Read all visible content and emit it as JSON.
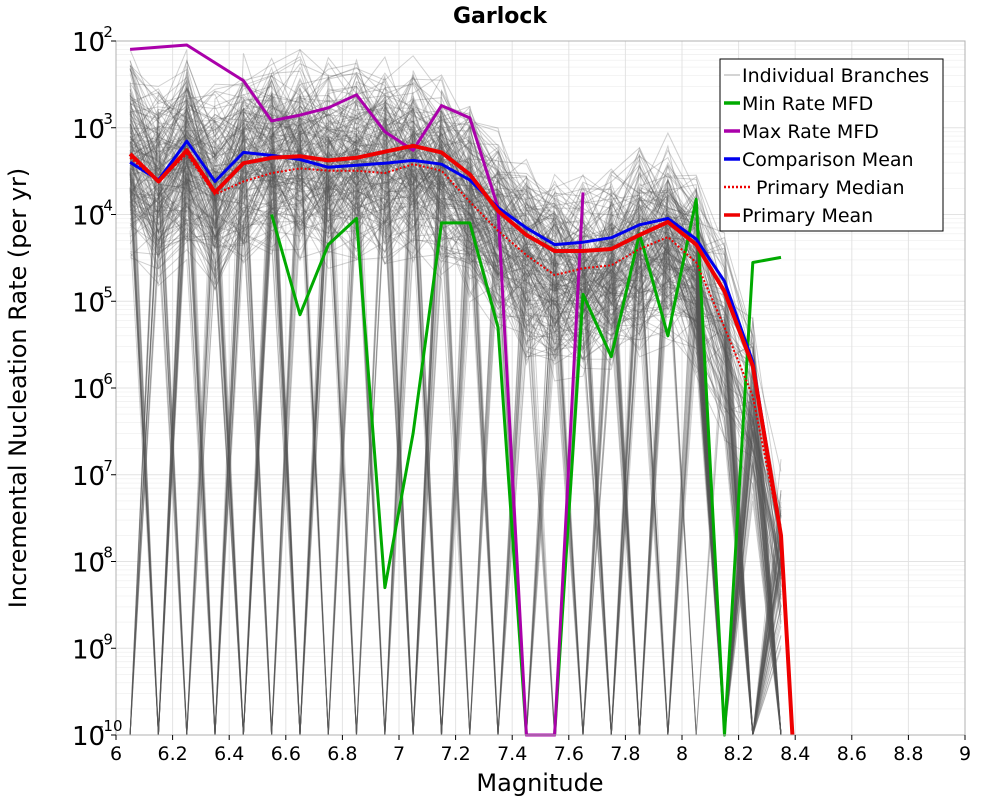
{
  "chart_data": {
    "type": "line",
    "title": "Garlock",
    "xlabel": "Magnitude",
    "ylabel": "Incremental Nucleation Rate (per yr)",
    "xlim": [
      6,
      9
    ],
    "ylim": [
      1e-10,
      0.01
    ],
    "yscale": "log",
    "grid": true,
    "legend_position": "top-right",
    "x_ticks": [
      "6",
      "6.2",
      "6.4",
      "6.6",
      "6.8",
      "7",
      "7.2",
      "7.4",
      "7.6",
      "7.8",
      "8",
      "8.2",
      "8.4",
      "8.6",
      "8.8",
      "9"
    ],
    "y_tick_mantissa": "10",
    "y_tick_exponents": [
      "-10",
      "-9",
      "-8",
      "-7",
      "-6",
      "-5",
      "-4",
      "-3",
      "-2"
    ],
    "series": [
      {
        "name": "Individual Branches",
        "color": "#555555",
        "style": "thin",
        "note_values": "ensemble of many branch MFDs spanning 1e-10 to 1e-2"
      },
      {
        "name": "Min Rate MFD",
        "color": "#00aa00",
        "x": [
          6.55,
          6.65,
          6.75,
          6.85,
          6.95,
          7.05,
          7.15,
          7.25,
          7.35,
          7.45,
          7.55,
          7.65,
          7.75,
          7.85,
          7.95,
          8.05,
          8.15,
          8.25,
          8.35
        ],
        "values": [
          0.0001,
          7e-06,
          4.5e-05,
          9e-05,
          5e-09,
          3e-07,
          8e-05,
          8e-05,
          5e-06,
          1e-10,
          1e-10,
          1.2e-05,
          2.3e-06,
          6e-05,
          4e-06,
          0.00015,
          1e-10,
          2.8e-05,
          3.2e-05
        ]
      },
      {
        "name": "Max Rate MFD",
        "color": "#aa00aa",
        "x": [
          6.05,
          6.25,
          6.45,
          6.55,
          6.65,
          6.75,
          6.85,
          6.95,
          7.05,
          7.15,
          7.25,
          7.35,
          7.45,
          7.55,
          7.65
        ],
        "values": [
          0.008,
          0.009,
          0.0035,
          0.0012,
          0.0014,
          0.0017,
          0.0024,
          0.0009,
          0.00055,
          0.0018,
          0.0013,
          0.00012,
          1e-10,
          1e-10,
          0.00018
        ]
      },
      {
        "name": "Comparison Mean",
        "color": "#0000ee",
        "x": [
          6.05,
          6.15,
          6.25,
          6.35,
          6.45,
          6.55,
          6.65,
          6.75,
          6.85,
          6.95,
          7.05,
          7.15,
          7.25,
          7.35,
          7.45,
          7.55,
          7.65,
          7.75,
          7.85,
          7.95,
          8.05,
          8.15,
          8.25,
          8.35
        ],
        "values": [
          0.0004,
          0.00025,
          0.0007,
          0.00024,
          0.00052,
          0.00048,
          0.00043,
          0.00035,
          0.00037,
          0.00039,
          0.00042,
          0.00038,
          0.00025,
          0.00012,
          7e-05,
          4.5e-05,
          4.8e-05,
          5.4e-05,
          7.6e-05,
          9e-05,
          5.2e-05,
          1.7e-05,
          2e-06,
          2e-08
        ]
      },
      {
        "name": "Primary Median",
        "color": "#ee0000",
        "style": "dotted",
        "x": [
          6.05,
          6.15,
          6.25,
          6.35,
          6.45,
          6.55,
          6.65,
          6.75,
          6.85,
          6.95,
          7.05,
          7.15,
          7.25,
          7.35,
          7.45,
          7.55,
          7.65,
          7.75,
          7.85,
          7.95,
          8.05,
          8.15,
          8.25,
          8.35
        ],
        "values": [
          0.00045,
          0.00024,
          0.0005,
          0.00017,
          0.00024,
          0.0003,
          0.00034,
          0.00032,
          0.00032,
          0.0003,
          0.00038,
          0.00032,
          0.00014,
          6.5e-05,
          3.4e-05,
          2e-05,
          2.4e-05,
          2.6e-05,
          4e-05,
          5.5e-05,
          2.8e-05,
          5e-06,
          8e-07,
          2e-08
        ]
      },
      {
        "name": "Primary Mean",
        "color": "#ee0000",
        "x": [
          6.05,
          6.15,
          6.25,
          6.35,
          6.45,
          6.55,
          6.65,
          6.75,
          6.85,
          6.95,
          7.05,
          7.15,
          7.25,
          7.35,
          7.45,
          7.55,
          7.65,
          7.75,
          7.85,
          7.95,
          8.05,
          8.15,
          8.25,
          8.35,
          8.39
        ],
        "values": [
          0.0005,
          0.00024,
          0.00055,
          0.00018,
          0.00039,
          0.00045,
          0.00047,
          0.00042,
          0.00045,
          0.00053,
          0.00062,
          0.00052,
          0.00029,
          0.00011,
          5.8e-05,
          3.8e-05,
          3.8e-05,
          4e-05,
          5.8e-05,
          8.2e-05,
          4.5e-05,
          1.3e-05,
          1.8e-06,
          2e-08,
          1e-10
        ]
      }
    ]
  }
}
